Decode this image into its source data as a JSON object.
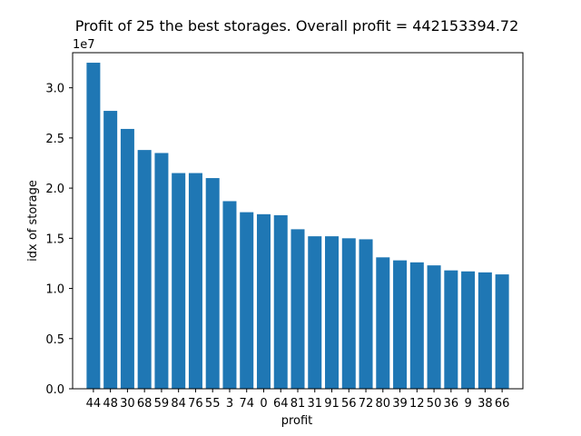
{
  "chart_data": {
    "type": "bar",
    "title": "Profit of 25 the best storages. Overall profit = 442153394.72",
    "xlabel": "profit",
    "ylabel": "idx of storage",
    "y_offset_text": "1e7",
    "y_scale": 10000000,
    "ylim": [
      0,
      3.35
    ],
    "yticks": [
      0.0,
      0.5,
      1.0,
      1.5,
      2.0,
      2.5,
      3.0
    ],
    "ytick_labels": [
      "0.0",
      "0.5",
      "1.0",
      "1.5",
      "2.0",
      "2.5",
      "3.0"
    ],
    "categories": [
      "44",
      "48",
      "30",
      "68",
      "59",
      "84",
      "76",
      "55",
      "3",
      "74",
      "0",
      "64",
      "81",
      "31",
      "91",
      "56",
      "72",
      "80",
      "39",
      "12",
      "50",
      "36",
      "9",
      "38",
      "66"
    ],
    "values": [
      3.25,
      2.77,
      2.59,
      2.38,
      2.35,
      2.15,
      2.15,
      2.1,
      1.87,
      1.76,
      1.74,
      1.73,
      1.59,
      1.52,
      1.52,
      1.5,
      1.49,
      1.31,
      1.28,
      1.26,
      1.23,
      1.18,
      1.17,
      1.16,
      1.14
    ],
    "bar_color": "#1f77b4",
    "grid": false,
    "legend": "none"
  }
}
